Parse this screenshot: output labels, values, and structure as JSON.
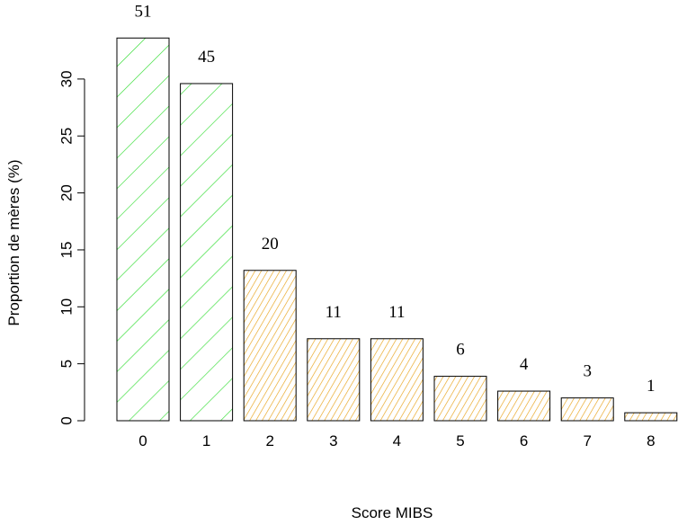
{
  "chart_data": {
    "type": "bar",
    "title": "",
    "xlabel": "Score MIBS",
    "ylabel": "Proportion de mères (%)",
    "ylim": [
      0,
      35
    ],
    "y_ticks": [
      "0",
      "5",
      "10",
      "15",
      "20",
      "25",
      "30"
    ],
    "categories": [
      "0",
      "1",
      "2",
      "3",
      "4",
      "5",
      "6",
      "7",
      "8"
    ],
    "values": [
      33.6,
      29.6,
      13.2,
      7.2,
      7.2,
      3.9,
      2.6,
      2.0,
      0.7
    ],
    "data_labels": [
      "51",
      "45",
      "20",
      "11",
      "11",
      "6",
      "4",
      "3",
      "1"
    ],
    "colors": {
      "hatch_green": "#33dd33",
      "hatch_orange": "#e8a21a",
      "bar_border": "#000000"
    },
    "groups": [
      "green",
      "green",
      "orange",
      "orange",
      "orange",
      "orange",
      "orange",
      "orange",
      "orange"
    ],
    "grid": false,
    "legend": "none"
  }
}
